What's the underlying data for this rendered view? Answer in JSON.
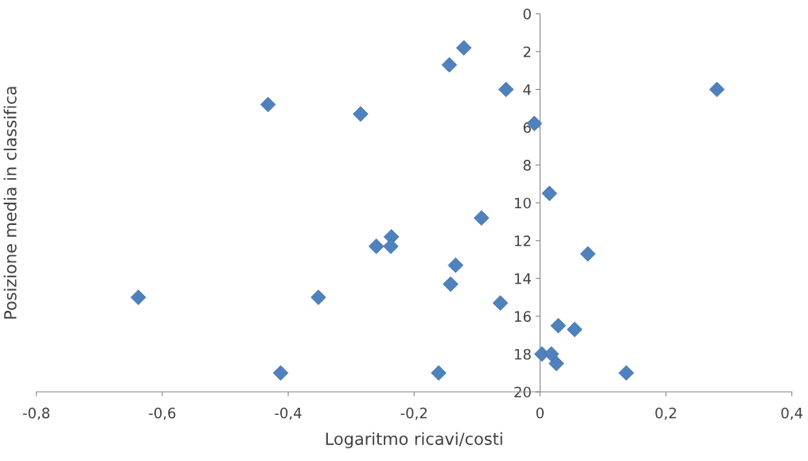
{
  "chart_data": {
    "type": "scatter",
    "xlabel": "Logaritmo ricavi/costi",
    "ylabel": "Posizione media in classifica",
    "x": [
      -0.121,
      -0.144,
      -0.054,
      0.281,
      -0.432,
      -0.285,
      -0.009,
      0.015,
      -0.093,
      -0.236,
      -0.26,
      -0.237,
      0.076,
      -0.134,
      -0.142,
      -0.638,
      -0.352,
      -0.063,
      0.029,
      0.055,
      0.003,
      0.018,
      0.026,
      -0.412,
      -0.161,
      0.137
    ],
    "series": [
      {
        "color": "#4f81bd",
        "values": [
          1.8,
          2.7,
          4.0,
          4.0,
          4.8,
          5.3,
          5.8,
          9.5,
          10.8,
          11.8,
          12.3,
          12.3,
          12.7,
          13.3,
          14.3,
          15.0,
          15.0,
          15.3,
          16.5,
          16.7,
          18.0,
          18.0,
          18.5,
          19.0,
          19.0,
          19.0
        ]
      }
    ],
    "marker": "diamond",
    "grid": false,
    "legend": false,
    "xlim": [
      -0.8,
      0.4
    ],
    "xticks": [
      {
        "value": -0.8,
        "label": "-0,8"
      },
      {
        "value": -0.6,
        "label": "-0,6"
      },
      {
        "value": -0.4,
        "label": "-0,4"
      },
      {
        "value": -0.2,
        "label": "-0,2"
      },
      0,
      {
        "value": 0.2,
        "label": "0,2"
      },
      {
        "value": 0.4,
        "label": "0,4"
      }
    ],
    "ylim": [
      20,
      0
    ],
    "yticks": [
      0,
      2,
      4,
      6,
      8,
      10,
      12,
      14,
      16,
      18,
      20
    ]
  }
}
